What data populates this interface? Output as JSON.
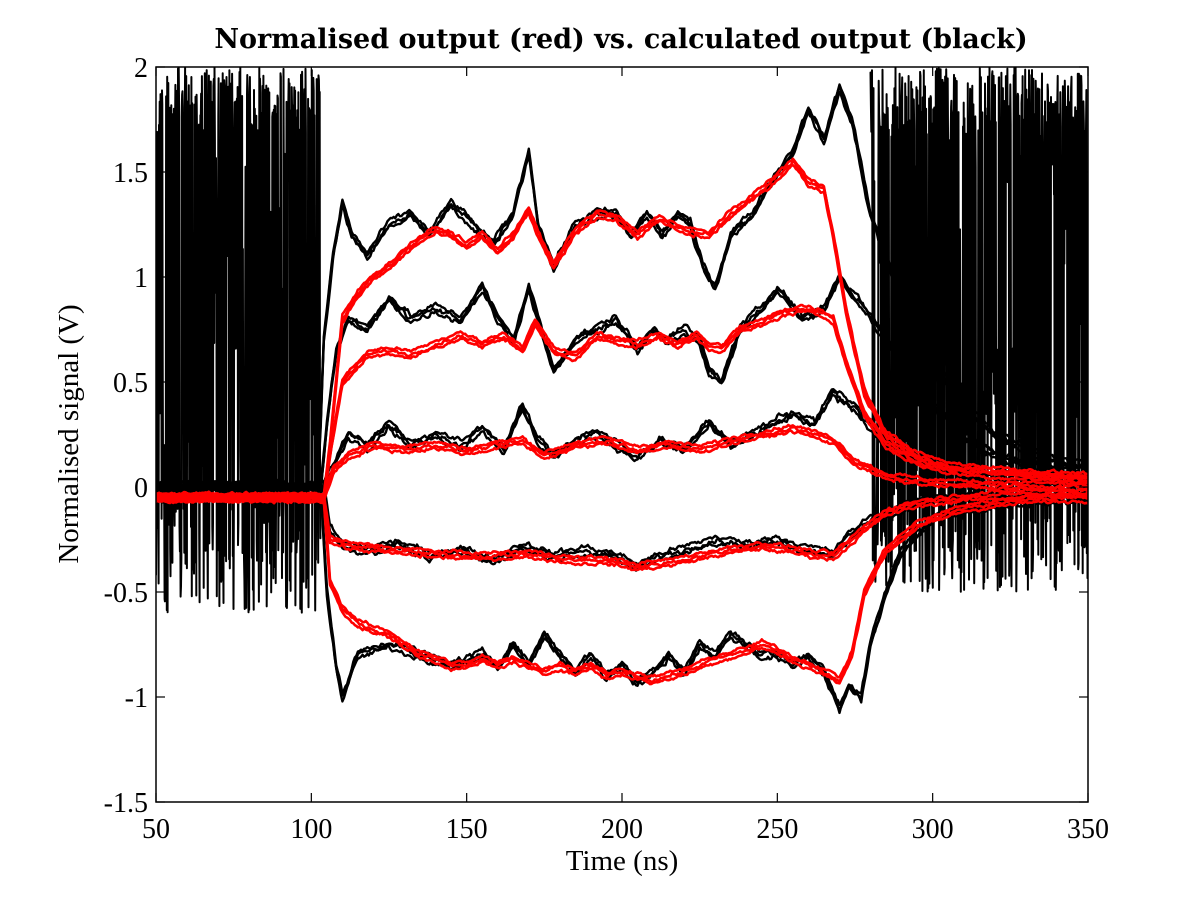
{
  "chart_data": {
    "type": "line",
    "title": "Normalised output (red) vs. calculated output (black)",
    "xlabel": "Time (ns)",
    "ylabel": "Normalised signal (V)",
    "xlim": [
      50,
      350
    ],
    "ylim": [
      -1.5,
      2
    ],
    "xticks": [
      50,
      100,
      150,
      200,
      250,
      300,
      350
    ],
    "yticks": [
      -1.5,
      -1,
      -0.5,
      0,
      0.5,
      1,
      1.5,
      2
    ],
    "xtick_labels": [
      "50",
      "100",
      "150",
      "200",
      "250",
      "300",
      "350"
    ],
    "ytick_labels": [
      "-1.5",
      "-1",
      "-0.5",
      "0",
      "0.5",
      "1",
      "1.5",
      "2"
    ],
    "grid": false,
    "colors": {
      "calculated": "#000000",
      "normalised": "#ff0000"
    },
    "series": [
      {
        "color": "#000000",
        "x": [
          50,
          102,
          103,
          104,
          107,
          110,
          113,
          118,
          125,
          132,
          138,
          145,
          152,
          158,
          165,
          170,
          173,
          178,
          185,
          192,
          198,
          203,
          208,
          213,
          218,
          222,
          226,
          230,
          235,
          242,
          248,
          255,
          260,
          265,
          270,
          274,
          280,
          290,
          300,
          310,
          320,
          335,
          350
        ],
        "y": [
          0,
          0,
          0.3,
          0.7,
          1.1,
          1.35,
          1.2,
          1.1,
          1.25,
          1.3,
          1.2,
          1.35,
          1.25,
          1.15,
          1.3,
          1.6,
          1.25,
          1.05,
          1.25,
          1.3,
          1.3,
          1.2,
          1.3,
          1.2,
          1.3,
          1.25,
          1.05,
          0.95,
          1.2,
          1.3,
          1.45,
          1.6,
          1.8,
          1.65,
          1.9,
          1.75,
          1.3,
          0.9,
          0.6,
          0.4,
          0.25,
          0.15,
          0.1
        ]
      },
      {
        "color": "#000000",
        "x": [
          50,
          103,
          105,
          108,
          112,
          118,
          125,
          132,
          140,
          148,
          155,
          160,
          165,
          170,
          175,
          178,
          185,
          192,
          198,
          205,
          210,
          215,
          220,
          225,
          228,
          232,
          238,
          245,
          250,
          258,
          265,
          270,
          278,
          290,
          300,
          310,
          320,
          335,
          350
        ],
        "y": [
          0,
          0,
          0.3,
          0.65,
          0.8,
          0.75,
          0.9,
          0.8,
          0.85,
          0.8,
          0.95,
          0.8,
          0.7,
          0.95,
          0.7,
          0.55,
          0.7,
          0.75,
          0.8,
          0.65,
          0.75,
          0.7,
          0.75,
          0.7,
          0.55,
          0.5,
          0.75,
          0.85,
          0.95,
          0.8,
          0.85,
          1.0,
          0.85,
          0.6,
          0.4,
          0.25,
          0.15,
          0.1,
          0.05
        ]
      },
      {
        "color": "#000000",
        "x": [
          50,
          104,
          107,
          112,
          118,
          125,
          132,
          140,
          148,
          155,
          162,
          168,
          173,
          178,
          185,
          192,
          198,
          205,
          212,
          220,
          228,
          235,
          242,
          248,
          255,
          262,
          268,
          275,
          285,
          300,
          320,
          350
        ],
        "y": [
          0,
          0,
          0.1,
          0.25,
          0.2,
          0.3,
          0.2,
          0.25,
          0.2,
          0.28,
          0.18,
          0.38,
          0.22,
          0.15,
          0.22,
          0.26,
          0.2,
          0.14,
          0.22,
          0.18,
          0.3,
          0.2,
          0.25,
          0.3,
          0.35,
          0.3,
          0.45,
          0.38,
          0.2,
          0.1,
          0.05,
          0.03
        ]
      },
      {
        "color": "#000000",
        "x": [
          50,
          104,
          106,
          110,
          118,
          128,
          138,
          148,
          158,
          168,
          178,
          188,
          198,
          205,
          212,
          220,
          230,
          240,
          250,
          260,
          268,
          272,
          280,
          290,
          300,
          320,
          350
        ],
        "y": [
          0,
          0,
          -0.2,
          -0.28,
          -0.3,
          -0.27,
          -0.33,
          -0.3,
          -0.35,
          -0.28,
          -0.33,
          -0.3,
          -0.33,
          -0.38,
          -0.33,
          -0.3,
          -0.25,
          -0.28,
          -0.25,
          -0.3,
          -0.32,
          -0.25,
          -0.15,
          -0.1,
          -0.05,
          -0.05,
          -0.05
        ]
      },
      {
        "color": "#000000",
        "x": [
          50,
          103,
          105,
          108,
          110,
          115,
          125,
          135,
          145,
          155,
          160,
          165,
          170,
          175,
          180,
          185,
          190,
          195,
          200,
          205,
          210,
          215,
          220,
          225,
          230,
          235,
          240,
          245,
          250,
          255,
          260,
          265,
          270,
          273,
          277,
          280,
          285,
          290,
          300,
          320,
          350
        ],
        "y": [
          0,
          0,
          -0.5,
          -0.85,
          -1.0,
          -0.8,
          -0.75,
          -0.8,
          -0.85,
          -0.8,
          -0.85,
          -0.75,
          -0.85,
          -0.7,
          -0.8,
          -0.88,
          -0.8,
          -0.9,
          -0.85,
          -0.93,
          -0.88,
          -0.8,
          -0.88,
          -0.75,
          -0.8,
          -0.7,
          -0.75,
          -0.8,
          -0.8,
          -0.85,
          -0.8,
          -0.88,
          -1.05,
          -0.95,
          -1.0,
          -0.75,
          -0.5,
          -0.3,
          -0.15,
          -0.08,
          -0.05
        ]
      },
      {
        "color": "#ff0000",
        "x": [
          50,
          104,
          106,
          110,
          115,
          120,
          125,
          130,
          135,
          140,
          145,
          150,
          155,
          160,
          165,
          170,
          173,
          178,
          185,
          192,
          198,
          205,
          212,
          220,
          228,
          235,
          242,
          248,
          255,
          260,
          265,
          268,
          272,
          278,
          285,
          295,
          305,
          320,
          335,
          350
        ],
        "y": [
          -0.05,
          -0.05,
          0.2,
          0.8,
          0.92,
          1.0,
          1.05,
          1.12,
          1.18,
          1.22,
          1.2,
          1.15,
          1.2,
          1.12,
          1.2,
          1.32,
          1.2,
          1.05,
          1.22,
          1.3,
          1.28,
          1.2,
          1.28,
          1.22,
          1.2,
          1.3,
          1.38,
          1.45,
          1.55,
          1.45,
          1.42,
          1.2,
          0.85,
          0.45,
          0.25,
          0.15,
          0.1,
          0.08,
          0.06,
          0.05
        ]
      },
      {
        "color": "#ff0000",
        "x": [
          50,
          104,
          106,
          110,
          118,
          125,
          132,
          140,
          148,
          155,
          162,
          168,
          172,
          178,
          185,
          192,
          198,
          205,
          212,
          218,
          224,
          228,
          232,
          238,
          245,
          252,
          258,
          264,
          268,
          272,
          278,
          285,
          295,
          305,
          320,
          350
        ],
        "y": [
          -0.05,
          -0.05,
          0.15,
          0.5,
          0.63,
          0.65,
          0.63,
          0.68,
          0.72,
          0.68,
          0.72,
          0.66,
          0.78,
          0.65,
          0.62,
          0.72,
          0.7,
          0.68,
          0.72,
          0.68,
          0.72,
          0.67,
          0.66,
          0.75,
          0.78,
          0.83,
          0.85,
          0.83,
          0.8,
          0.6,
          0.35,
          0.2,
          0.12,
          0.08,
          0.06,
          0.04
        ]
      },
      {
        "color": "#ff0000",
        "x": [
          50,
          104,
          107,
          112,
          120,
          130,
          140,
          150,
          160,
          168,
          175,
          185,
          195,
          205,
          215,
          225,
          235,
          245,
          255,
          262,
          268,
          275,
          285,
          300,
          320,
          350
        ],
        "y": [
          -0.05,
          -0.05,
          0.08,
          0.15,
          0.2,
          0.18,
          0.2,
          0.17,
          0.2,
          0.22,
          0.15,
          0.2,
          0.22,
          0.18,
          0.2,
          0.18,
          0.22,
          0.25,
          0.28,
          0.25,
          0.22,
          0.12,
          0.05,
          0.02,
          0.01,
          0.0
        ]
      },
      {
        "color": "#ff0000",
        "x": [
          50,
          104,
          106,
          112,
          125,
          140,
          155,
          170,
          185,
          195,
          205,
          215,
          225,
          235,
          245,
          255,
          262,
          268,
          272,
          278,
          285,
          295,
          310,
          330,
          350
        ],
        "y": [
          -0.05,
          -0.05,
          -0.25,
          -0.28,
          -0.3,
          -0.32,
          -0.33,
          -0.32,
          -0.35,
          -0.35,
          -0.38,
          -0.36,
          -0.33,
          -0.3,
          -0.28,
          -0.3,
          -0.32,
          -0.33,
          -0.28,
          -0.2,
          -0.12,
          -0.08,
          -0.05,
          -0.03,
          -0.03
        ]
      },
      {
        "color": "#ff0000",
        "x": [
          50,
          104,
          106,
          110,
          115,
          120,
          125,
          130,
          135,
          140,
          145,
          150,
          155,
          160,
          165,
          170,
          175,
          180,
          185,
          190,
          195,
          200,
          205,
          210,
          215,
          220,
          225,
          230,
          235,
          240,
          245,
          250,
          255,
          260,
          265,
          270,
          274,
          278,
          285,
          295,
          310,
          330,
          350
        ],
        "y": [
          -0.05,
          -0.05,
          -0.45,
          -0.58,
          -0.65,
          -0.68,
          -0.7,
          -0.75,
          -0.8,
          -0.82,
          -0.85,
          -0.85,
          -0.82,
          -0.85,
          -0.82,
          -0.85,
          -0.88,
          -0.85,
          -0.88,
          -0.85,
          -0.9,
          -0.88,
          -0.9,
          -0.92,
          -0.9,
          -0.88,
          -0.85,
          -0.82,
          -0.8,
          -0.78,
          -0.75,
          -0.78,
          -0.82,
          -0.85,
          -0.88,
          -0.92,
          -0.8,
          -0.5,
          -0.3,
          -0.18,
          -0.1,
          -0.06,
          -0.05
        ]
      }
    ],
    "noise_regions": [
      {
        "color": "#000000",
        "x_start": 50,
        "x_end": 103,
        "y_min": -0.6,
        "y_max": 2
      },
      {
        "color": "#000000",
        "x_start": 280,
        "x_end": 350,
        "y_min": -0.5,
        "y_max": 2
      }
    ]
  }
}
